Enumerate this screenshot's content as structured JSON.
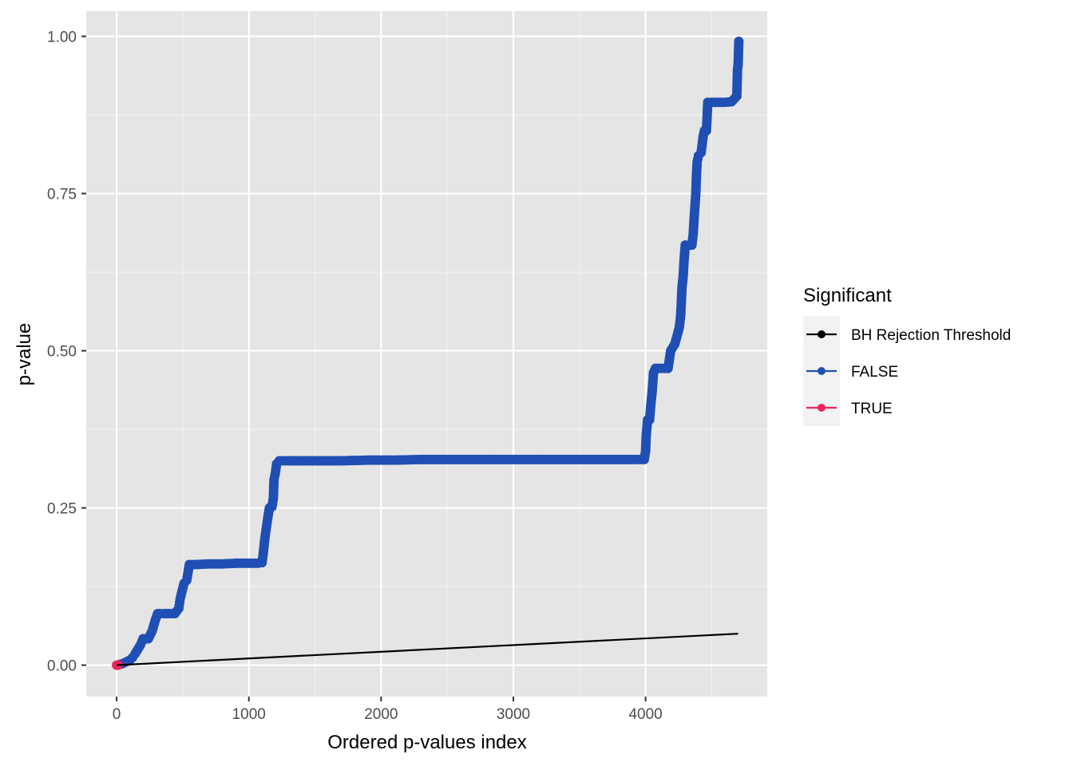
{
  "chart_data": {
    "type": "scatter",
    "xlabel": "Ordered p-values index",
    "ylabel": "p-value",
    "xlim": [
      -230,
      4920
    ],
    "ylim": [
      -0.05,
      1.04
    ],
    "x_ticks": [
      0,
      1000,
      2000,
      3000,
      4000
    ],
    "y_ticks": [
      0.0,
      0.25,
      0.5,
      0.75,
      1.0
    ],
    "x_tick_labels": [
      "0",
      "1000",
      "2000",
      "3000",
      "4000"
    ],
    "y_tick_labels": [
      "0.00",
      "0.25",
      "0.50",
      "0.75",
      "1.00"
    ],
    "grid": true,
    "legend": {
      "title": "Significant",
      "position": "right",
      "entries": [
        {
          "label": "BH Rejection Threshold",
          "color": "#000000"
        },
        {
          "label": "FALSE",
          "color": "#1f4fb4"
        },
        {
          "label": "TRUE",
          "color": "#f0245e"
        }
      ]
    },
    "series": [
      {
        "name": "BH Rejection Threshold",
        "kind": "line",
        "color": "#000000",
        "points": [
          [
            0,
            0.0
          ],
          [
            4700,
            0.05
          ]
        ]
      },
      {
        "name": "FALSE",
        "kind": "points",
        "color": "#1f4fb4",
        "points": [
          [
            20,
            0.001
          ],
          [
            40,
            0.002
          ],
          [
            60,
            0.004
          ],
          [
            80,
            0.006
          ],
          [
            100,
            0.008
          ],
          [
            120,
            0.012
          ],
          [
            140,
            0.018
          ],
          [
            160,
            0.025
          ],
          [
            180,
            0.032
          ],
          [
            200,
            0.042
          ],
          [
            220,
            0.042
          ],
          [
            240,
            0.042
          ],
          [
            270,
            0.055
          ],
          [
            290,
            0.07
          ],
          [
            310,
            0.082
          ],
          [
            330,
            0.082
          ],
          [
            360,
            0.082
          ],
          [
            400,
            0.082
          ],
          [
            440,
            0.082
          ],
          [
            470,
            0.09
          ],
          [
            480,
            0.105
          ],
          [
            495,
            0.118
          ],
          [
            510,
            0.13
          ],
          [
            530,
            0.135
          ],
          [
            550,
            0.16
          ],
          [
            600,
            0.16
          ],
          [
            700,
            0.161
          ],
          [
            800,
            0.161
          ],
          [
            900,
            0.162
          ],
          [
            1000,
            0.162
          ],
          [
            1070,
            0.162
          ],
          [
            1100,
            0.163
          ],
          [
            1110,
            0.18
          ],
          [
            1120,
            0.2
          ],
          [
            1130,
            0.215
          ],
          [
            1140,
            0.23
          ],
          [
            1155,
            0.25
          ],
          [
            1175,
            0.252
          ],
          [
            1185,
            0.265
          ],
          [
            1190,
            0.295
          ],
          [
            1200,
            0.305
          ],
          [
            1210,
            0.32
          ],
          [
            1230,
            0.325
          ],
          [
            1300,
            0.325
          ],
          [
            1500,
            0.325
          ],
          [
            1700,
            0.325
          ],
          [
            1900,
            0.326
          ],
          [
            2100,
            0.326
          ],
          [
            2300,
            0.327
          ],
          [
            2500,
            0.327
          ],
          [
            2700,
            0.327
          ],
          [
            2900,
            0.327
          ],
          [
            3100,
            0.327
          ],
          [
            3300,
            0.327
          ],
          [
            3500,
            0.327
          ],
          [
            3700,
            0.327
          ],
          [
            3900,
            0.327
          ],
          [
            3990,
            0.327
          ],
          [
            4000,
            0.34
          ],
          [
            4005,
            0.365
          ],
          [
            4015,
            0.39
          ],
          [
            4030,
            0.39
          ],
          [
            4040,
            0.415
          ],
          [
            4050,
            0.435
          ],
          [
            4060,
            0.465
          ],
          [
            4075,
            0.472
          ],
          [
            4120,
            0.472
          ],
          [
            4170,
            0.472
          ],
          [
            4190,
            0.5
          ],
          [
            4220,
            0.51
          ],
          [
            4240,
            0.525
          ],
          [
            4255,
            0.537
          ],
          [
            4265,
            0.555
          ],
          [
            4270,
            0.575
          ],
          [
            4275,
            0.6
          ],
          [
            4285,
            0.62
          ],
          [
            4290,
            0.64
          ],
          [
            4300,
            0.668
          ],
          [
            4330,
            0.668
          ],
          [
            4350,
            0.668
          ],
          [
            4360,
            0.685
          ],
          [
            4370,
            0.72
          ],
          [
            4380,
            0.75
          ],
          [
            4385,
            0.78
          ],
          [
            4390,
            0.8
          ],
          [
            4400,
            0.81
          ],
          [
            4420,
            0.815
          ],
          [
            4435,
            0.84
          ],
          [
            4445,
            0.85
          ],
          [
            4460,
            0.85
          ],
          [
            4465,
            0.87
          ],
          [
            4470,
            0.895
          ],
          [
            4500,
            0.895
          ],
          [
            4550,
            0.895
          ],
          [
            4600,
            0.895
          ],
          [
            4650,
            0.896
          ],
          [
            4690,
            0.905
          ],
          [
            4695,
            0.947
          ],
          [
            4700,
            0.955
          ],
          [
            4705,
            0.992
          ]
        ]
      },
      {
        "name": "TRUE",
        "kind": "points",
        "color": "#f0245e",
        "points": [
          [
            0,
            0.0
          ],
          [
            6,
            0.0
          ],
          [
            12,
            0.0001
          ]
        ]
      }
    ]
  }
}
